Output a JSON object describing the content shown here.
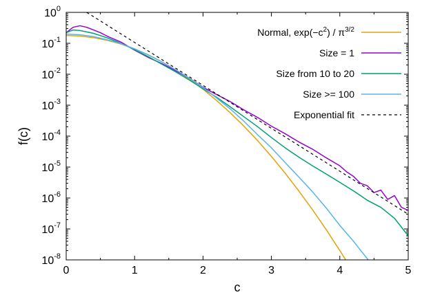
{
  "chart_data": {
    "type": "line",
    "xlabel": "c",
    "ylabel": "f(c)",
    "xlim": [
      0,
      5
    ],
    "ylim": [
      1e-08,
      1
    ],
    "y_scale": "log",
    "legend_placement": "top-right",
    "x_ticks": [
      {
        "value": 0,
        "label": "0"
      },
      {
        "value": 1,
        "label": "1"
      },
      {
        "value": 2,
        "label": "2"
      },
      {
        "value": 3,
        "label": "3"
      },
      {
        "value": 4,
        "label": "4"
      },
      {
        "value": 5,
        "label": "5"
      }
    ],
    "y_ticks": [
      {
        "value": 1,
        "base": "10",
        "exp": "0"
      },
      {
        "value": 0.1,
        "base": "10",
        "exp": "-1"
      },
      {
        "value": 0.01,
        "base": "10",
        "exp": "-2"
      },
      {
        "value": 0.001,
        "base": "10",
        "exp": "-3"
      },
      {
        "value": 0.0001,
        "base": "10",
        "exp": "-4"
      },
      {
        "value": 1e-05,
        "base": "10",
        "exp": "-5"
      },
      {
        "value": 1e-06,
        "base": "10",
        "exp": "-6"
      },
      {
        "value": 1e-07,
        "base": "10",
        "exp": "-7"
      },
      {
        "value": 1e-08,
        "base": "10",
        "exp": "-8"
      }
    ],
    "series": [
      {
        "name": "Normal, exp(−c²) / π³ᐟ²",
        "legend_parts": {
          "a": "Normal, exp(−c",
          "sup1": "2",
          "b": ") / π",
          "sup2": "3/2"
        },
        "color": "#E6A10A",
        "dash": false,
        "x": [
          0,
          0.2,
          0.4,
          0.6,
          0.8,
          1.0,
          1.2,
          1.4,
          1.6,
          1.8,
          2.0,
          2.2,
          2.4,
          2.6,
          2.8,
          3.0,
          3.2,
          3.4,
          3.6,
          3.8,
          4.0,
          4.2
        ],
        "y": [
          0.18,
          0.172,
          0.152,
          0.125,
          0.095,
          0.066,
          0.0425,
          0.0253,
          0.0139,
          0.007,
          0.00329,
          0.00141,
          0.000565,
          0.000208,
          7.1e-05,
          2.2e-05,
          6.4e-06,
          1.7e-06,
          4.2e-07,
          9.6e-08,
          2e-08,
          4e-09
        ]
      },
      {
        "name": "Size = 1",
        "color": "#9400D3",
        "dash": false,
        "x": [
          0,
          0.1,
          0.2,
          0.3,
          0.4,
          0.5,
          0.6,
          0.8,
          1.0,
          1.2,
          1.4,
          1.6,
          1.8,
          2.0,
          2.2,
          2.4,
          2.6,
          2.8,
          3.0,
          3.2,
          3.4,
          3.6,
          3.8,
          4.0,
          4.1,
          4.2,
          4.3,
          4.4,
          4.5,
          4.6,
          4.7,
          4.8,
          4.9,
          5.0
        ],
        "y": [
          0.22,
          0.33,
          0.37,
          0.33,
          0.27,
          0.22,
          0.17,
          0.11,
          0.06,
          0.035,
          0.022,
          0.013,
          0.0075,
          0.0038,
          0.0022,
          0.0013,
          0.0007,
          0.0004,
          0.00021,
          0.00012,
          6.5e-05,
          3.8e-05,
          2e-05,
          1.1e-05,
          7e-06,
          5e-06,
          3e-06,
          2.5e-06,
          1.5e-06,
          1.8e-06,
          9e-07,
          1.2e-06,
          5e-07,
          4e-07
        ]
      },
      {
        "name": "Size from 10 to 20",
        "color": "#009E73",
        "dash": false,
        "x": [
          0,
          0.1,
          0.2,
          0.4,
          0.6,
          0.8,
          1.0,
          1.2,
          1.4,
          1.6,
          1.8,
          2.0,
          2.2,
          2.4,
          2.6,
          2.8,
          3.0,
          3.2,
          3.4,
          3.6,
          3.8,
          4.0,
          4.2,
          4.4,
          4.6,
          4.8,
          5.0
        ],
        "y": [
          0.22,
          0.27,
          0.26,
          0.21,
          0.15,
          0.1,
          0.062,
          0.037,
          0.021,
          0.012,
          0.0065,
          0.0034,
          0.0018,
          0.00088,
          0.00042,
          0.0002,
          9e-05,
          4.2e-05,
          2.1e-05,
          1.1e-05,
          6e-06,
          3.2e-06,
          1.7e-06,
          8.5e-07,
          5e-07,
          2.2e-07,
          6e-08
        ]
      },
      {
        "name": "Size >= 100",
        "color": "#56B4E9",
        "dash": false,
        "x": [
          0,
          0.2,
          0.4,
          0.6,
          0.8,
          1.0,
          1.2,
          1.4,
          1.6,
          1.8,
          2.0,
          2.2,
          2.4,
          2.6,
          2.8,
          3.0,
          3.2,
          3.4,
          3.6,
          3.8,
          4.0,
          4.2,
          4.4,
          4.5
        ],
        "y": [
          0.2,
          0.19,
          0.165,
          0.13,
          0.098,
          0.066,
          0.042,
          0.025,
          0.014,
          0.0075,
          0.0037,
          0.0017,
          0.00075,
          0.0003,
          0.00011,
          4.2e-05,
          1.4e-05,
          4.8e-06,
          1.6e-06,
          4.8e-07,
          1.3e-07,
          4e-08,
          1.1e-08,
          6e-09
        ]
      },
      {
        "name": "Exponential fit",
        "color": "#000000",
        "dash": true,
        "x": [
          0.3,
          5.0
        ],
        "y": [
          1.0,
          3e-07
        ]
      }
    ]
  }
}
